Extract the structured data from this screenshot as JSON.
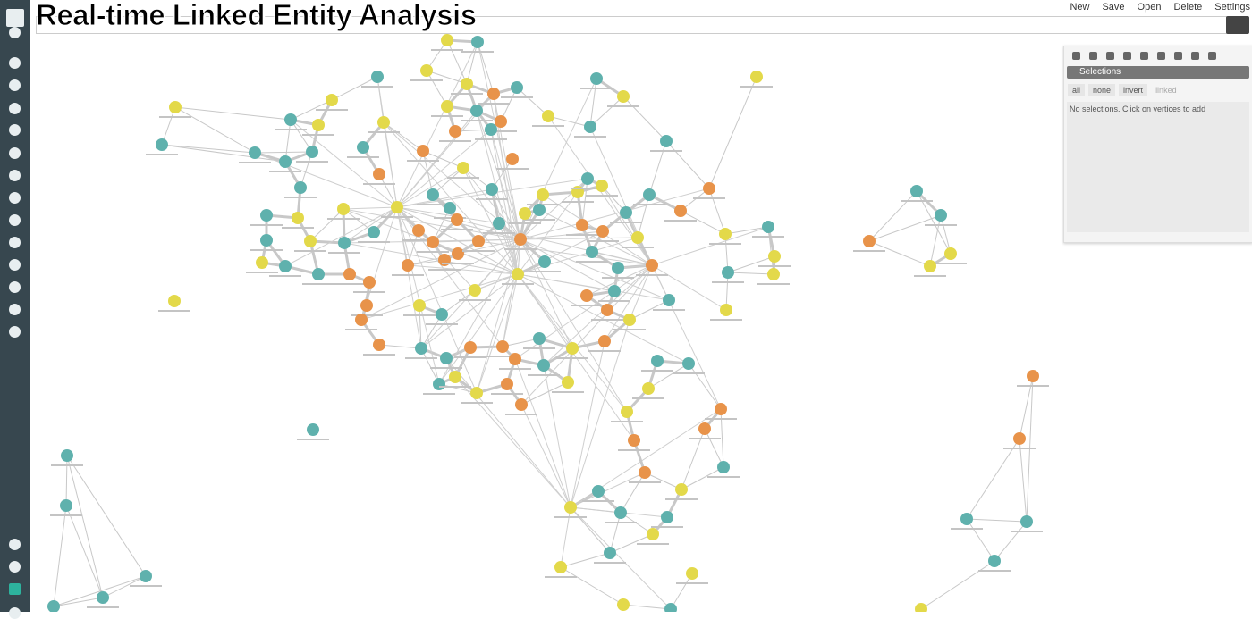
{
  "header": {
    "title": "Real-time Linked Entity Analysis",
    "menu": [
      "New",
      "Save",
      "Open",
      "Delete",
      "Settings"
    ]
  },
  "panel": {
    "title": "Selections",
    "buttons": [
      "all",
      "none",
      "invert",
      "linked"
    ],
    "message": "No selections. Click on vertices to add"
  }
}
